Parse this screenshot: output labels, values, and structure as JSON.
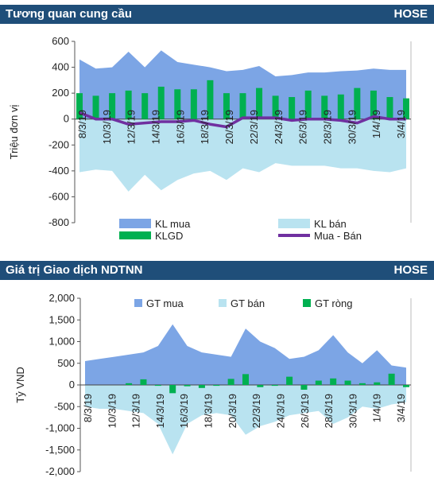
{
  "sections": [
    {
      "title": "Tương quan cung cầu",
      "exchange": "HOSE"
    },
    {
      "title": "Giá trị Giao dịch NDTNN",
      "exchange": "HOSE"
    }
  ],
  "colors": {
    "header_bg": "#1f4e79",
    "buy": "#7ca5e5",
    "sell": "#b9e3f0",
    "net": "#00b050",
    "mua_ban": "#7030a0"
  },
  "chart_data": [
    {
      "type": "area",
      "ylabel": "Triệu đơn vị",
      "ylim": [
        -800,
        600
      ],
      "yticks": [
        600,
        400,
        200,
        0,
        -200,
        -400,
        -600,
        -800
      ],
      "x": [
        "8/3/19",
        "11/3/19",
        "12/3/19",
        "13/3/19",
        "14/3/19",
        "15/3/19",
        "18/3/19",
        "19/3/19",
        "20/3/19",
        "21/3/19",
        "22/3/19",
        "25/3/19",
        "26/3/19",
        "27/3/19",
        "28/3/19",
        "29/3/19",
        "1/4/19",
        "2/4/19",
        "3/4/19",
        "4/4/19",
        "5/4/19"
      ],
      "xtick_labels": [
        "8/3/19",
        "10/3/19",
        "12/3/19",
        "14/3/19",
        "16/3/19",
        "18/3/19",
        "20/3/19",
        "22/3/19",
        "24/3/19",
        "26/3/19",
        "28/3/19",
        "30/3/19",
        "1/4/19",
        "3/4/19"
      ],
      "legend": [
        "KL mua",
        "KL bán",
        "KLGD",
        "Mua - Bán"
      ],
      "series": [
        {
          "name": "KL mua",
          "kind": "area",
          "values": [
            460,
            390,
            400,
            520,
            400,
            530,
            440,
            420,
            400,
            370,
            380,
            410,
            330,
            340,
            360,
            360,
            370,
            375,
            390,
            380,
            380
          ]
        },
        {
          "name": "KL bán",
          "kind": "area",
          "values": [
            -410,
            -390,
            -400,
            -560,
            -430,
            -550,
            -470,
            -420,
            -400,
            -470,
            -380,
            -410,
            -340,
            -360,
            -360,
            -360,
            -380,
            -380,
            -400,
            -410,
            -380
          ]
        },
        {
          "name": "KLGD",
          "kind": "bar",
          "values": [
            200,
            180,
            200,
            220,
            200,
            250,
            230,
            230,
            300,
            200,
            200,
            240,
            180,
            170,
            220,
            180,
            190,
            240,
            220,
            170,
            160
          ]
        },
        {
          "name": "Mua - Bán",
          "kind": "line",
          "values": [
            50,
            0,
            0,
            -40,
            -30,
            -20,
            -20,
            -10,
            -40,
            -60,
            10,
            10,
            10,
            -10,
            0,
            0,
            -10,
            -30,
            20,
            0,
            0
          ]
        }
      ]
    },
    {
      "type": "area",
      "ylabel": "Tỷ VND",
      "ylim": [
        -2000,
        2000
      ],
      "ytick_labels": [
        "2,000",
        "1,500",
        "1,000",
        "500",
        "0",
        "-500",
        "-1,000",
        "-1,500",
        "-2,000"
      ],
      "xtick_labels": [
        "8/3/19",
        "10/3/19",
        "12/3/19",
        "14/3/19",
        "16/3/19",
        "18/3/19",
        "20/3/19",
        "22/3/19",
        "24/3/19",
        "26/3/19",
        "28/3/19",
        "30/3/19",
        "1/4/19",
        "3/4/19"
      ],
      "legend": [
        "GT mua",
        "GT bán",
        "GT ròng"
      ],
      "series": [
        {
          "name": "GT mua",
          "kind": "area",
          "values": [
            550,
            600,
            650,
            700,
            750,
            900,
            1400,
            900,
            750,
            700,
            650,
            1300,
            1000,
            850,
            600,
            650,
            800,
            1150,
            750,
            500,
            800,
            450,
            400
          ]
        },
        {
          "name": "GT bán",
          "kind": "area",
          "values": [
            -500,
            -550,
            -550,
            -600,
            -650,
            -900,
            -1600,
            -900,
            -700,
            -650,
            -700,
            -1150,
            -950,
            -850,
            -700,
            -650,
            -600,
            -900,
            -750,
            -500,
            -550,
            -450,
            -400
          ]
        },
        {
          "name": "GT ròng",
          "kind": "bar",
          "values": [
            0,
            0,
            0,
            40,
            130,
            -20,
            -190,
            -30,
            -70,
            -20,
            140,
            250,
            -50,
            -20,
            190,
            -110,
            100,
            150,
            100,
            40,
            60,
            260,
            -50
          ]
        }
      ]
    }
  ]
}
